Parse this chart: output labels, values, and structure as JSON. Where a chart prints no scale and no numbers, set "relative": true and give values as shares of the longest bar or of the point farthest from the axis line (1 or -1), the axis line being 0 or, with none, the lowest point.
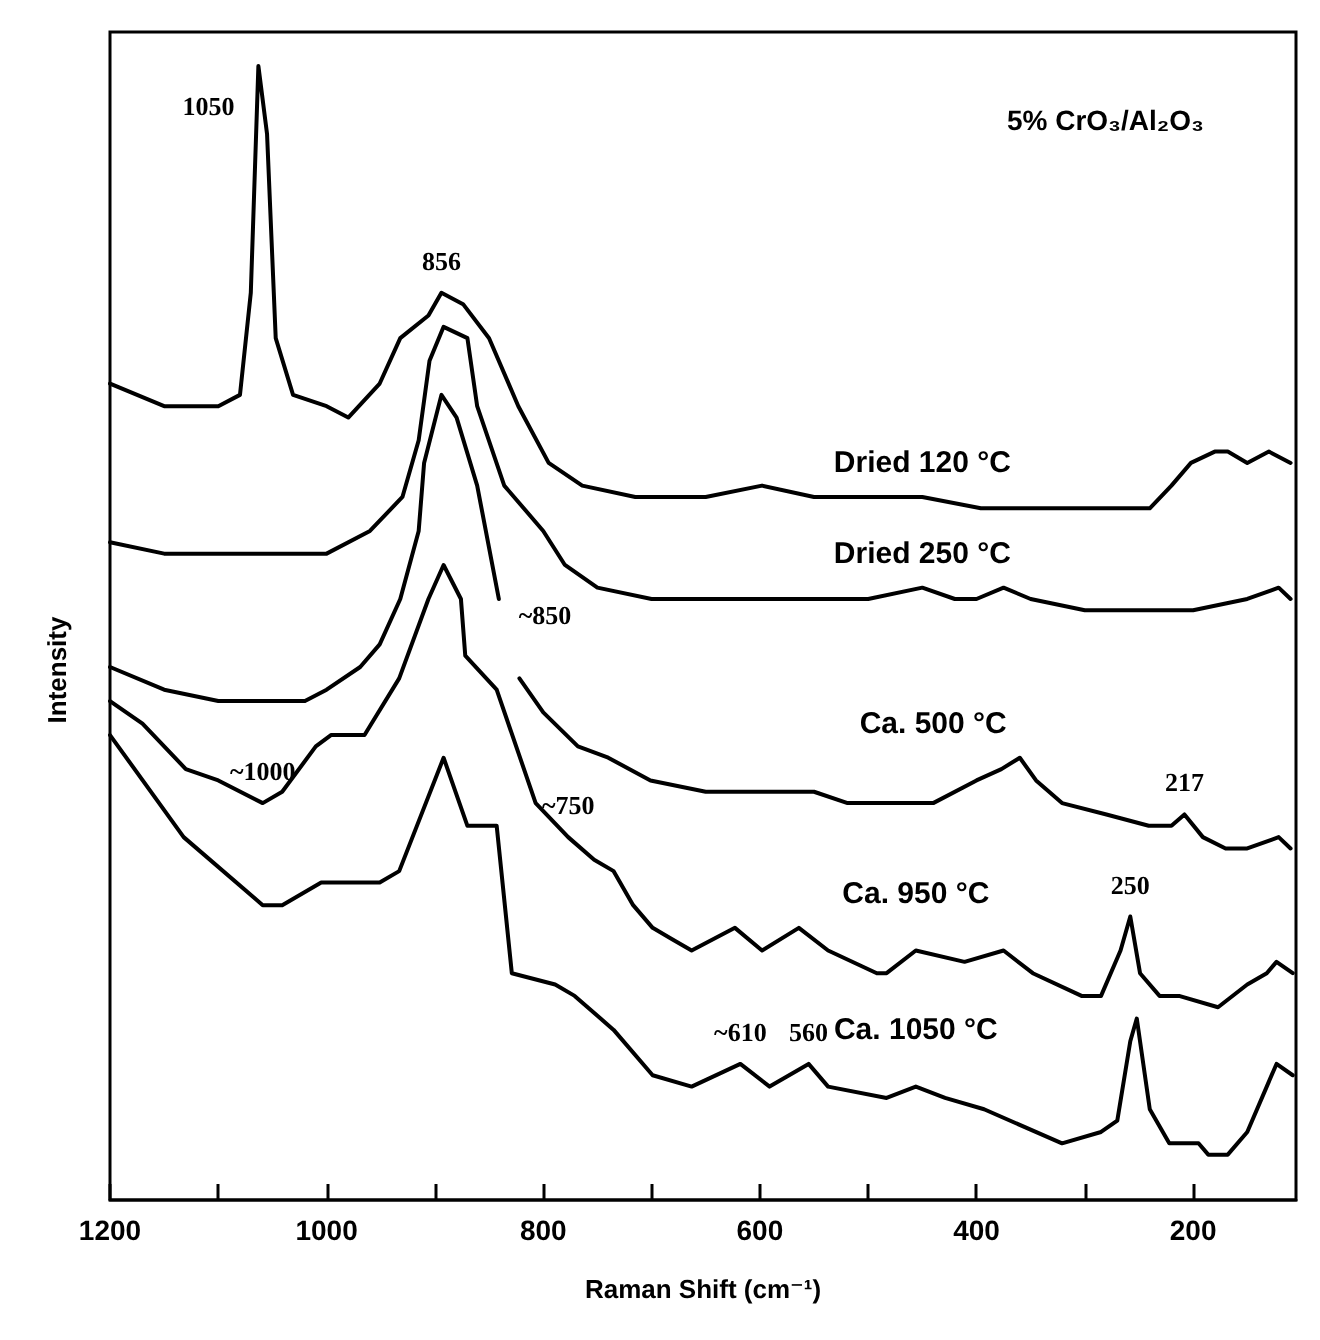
{
  "chart_data": {
    "type": "line",
    "title": "5% CrO₃/Al₂O₃",
    "xlabel": "Raman Shift (cm⁻¹)",
    "ylabel": "Intensity",
    "relative": true,
    "legend": false,
    "grid": false,
    "marker": "none",
    "line_style": "solid",
    "xlim": [
      1200,
      105
    ],
    "xticks": [
      1200,
      {
        "value": 1100,
        "label": null
      },
      1000,
      {
        "value": 900,
        "label": null
      },
      800,
      {
        "value": 700,
        "label": null
      },
      600,
      {
        "value": 500,
        "label": null
      },
      400,
      {
        "value": 300,
        "label": null
      },
      200
    ],
    "series": [
      {
        "name": "Dried 120 °C",
        "color": "#000000",
        "x": [
          1200,
          1150,
          1100,
          1080,
          1070,
          1063,
          1055,
          1047,
          1031,
          1000,
          980,
          951,
          932,
          906,
          894,
          874,
          850,
          823,
          795,
          764,
          715,
          650,
          598,
          550,
          497,
          450,
          396,
          350,
          299,
          260,
          240,
          220,
          202,
          180,
          168,
          150,
          130,
          110
        ],
        "values": [
          0.72,
          0.7,
          0.7,
          0.71,
          0.8,
          1.0,
          0.94,
          0.76,
          0.71,
          0.7,
          0.69,
          0.72,
          0.76,
          0.78,
          0.8,
          0.79,
          0.76,
          0.7,
          0.65,
          0.63,
          0.62,
          0.62,
          0.63,
          0.62,
          0.62,
          0.62,
          0.61,
          0.61,
          0.61,
          0.61,
          0.61,
          0.63,
          0.65,
          0.66,
          0.66,
          0.65,
          0.66,
          0.65
        ]
      },
      {
        "name": "Dried 250 °C",
        "color": "#000000",
        "x": [
          1200,
          1150,
          1100,
          1050,
          1000,
          960,
          930,
          915,
          905,
          892,
          870,
          861,
          836,
          800,
          780,
          750,
          700,
          650,
          600,
          550,
          500,
          450,
          420,
          400,
          375,
          350,
          300,
          250,
          200,
          150,
          121,
          110
        ],
        "values": [
          0.58,
          0.57,
          0.57,
          0.57,
          0.57,
          0.59,
          0.62,
          0.67,
          0.74,
          0.77,
          0.76,
          0.7,
          0.63,
          0.59,
          0.56,
          0.54,
          0.53,
          0.53,
          0.53,
          0.53,
          0.53,
          0.54,
          0.53,
          0.53,
          0.54,
          0.53,
          0.52,
          0.52,
          0.52,
          0.53,
          0.54,
          0.53
        ]
      },
      {
        "name": "Ca. 500 °C",
        "color": "#000000",
        "x": [
          1200,
          1150,
          1100,
          1059,
          1020,
          1000,
          969,
          951,
          932,
          915,
          910,
          894,
          880,
          861,
          841,
          832,
          822,
          800,
          768,
          740,
          701,
          650,
          598,
          550,
          519,
          479,
          440,
          400,
          377,
          360,
          345,
          321,
          280,
          241,
          220,
          208,
          191,
          170,
          150,
          121,
          110
        ],
        "values": [
          0.47,
          0.45,
          0.44,
          0.44,
          0.44,
          0.45,
          0.47,
          0.49,
          0.53,
          0.59,
          0.65,
          0.71,
          0.69,
          0.63,
          0.53,
          null,
          0.46,
          0.43,
          0.4,
          0.39,
          0.37,
          0.36,
          0.36,
          0.36,
          0.35,
          0.35,
          0.35,
          0.37,
          0.38,
          0.39,
          0.37,
          0.35,
          0.34,
          0.33,
          0.33,
          0.34,
          0.32,
          0.31,
          0.31,
          0.32,
          0.31
        ]
      },
      {
        "name": "Ca. 950 °C",
        "color": "#000000",
        "x": [
          1200,
          1170,
          1130,
          1100,
          1059,
          1041,
          1010,
          996,
          965,
          933,
          906,
          892,
          876,
          872,
          843,
          807,
          777,
          753,
          735,
          717,
          699,
          681,
          663,
          623,
          598,
          564,
          537,
          492,
          483,
          456,
          411,
          375,
          348,
          303,
          285,
          267,
          258,
          249,
          231,
          213,
          177,
          150,
          132,
          123,
          108
        ],
        "values": [
          0.44,
          0.42,
          0.38,
          0.37,
          0.35,
          0.36,
          0.4,
          0.41,
          0.41,
          0.46,
          0.53,
          0.56,
          0.53,
          0.48,
          0.45,
          0.35,
          0.32,
          0.3,
          0.29,
          0.26,
          0.24,
          0.23,
          0.22,
          0.24,
          0.22,
          0.24,
          0.22,
          0.2,
          0.2,
          0.22,
          0.21,
          0.22,
          0.2,
          0.18,
          0.18,
          0.22,
          0.25,
          0.2,
          0.18,
          0.18,
          0.17,
          0.19,
          0.2,
          0.21,
          0.2
        ]
      },
      {
        "name": "Ca. 1050 °C",
        "color": "#000000",
        "x": [
          1200,
          1132,
          1059,
          1041,
          1005,
          951,
          933,
          892,
          870,
          843,
          829,
          789,
          771,
          735,
          699,
          663,
          618,
          591,
          555,
          537,
          483,
          456,
          429,
          393,
          321,
          285,
          270,
          258,
          252,
          240,
          222,
          195,
          186,
          168,
          150,
          132,
          123,
          108
        ],
        "values": [
          0.41,
          0.32,
          0.26,
          0.26,
          0.28,
          0.28,
          0.29,
          0.39,
          0.33,
          0.33,
          0.2,
          0.19,
          0.18,
          0.15,
          0.11,
          0.1,
          0.12,
          0.1,
          0.12,
          0.1,
          0.09,
          0.1,
          0.09,
          0.08,
          0.05,
          0.06,
          0.07,
          0.14,
          0.16,
          0.08,
          0.05,
          0.05,
          0.04,
          0.04,
          0.06,
          0.1,
          0.12,
          0.11
        ]
      }
    ],
    "annotations": [
      {
        "text": "1050",
        "x": 1063,
        "y": 1.0
      },
      {
        "text": "856",
        "x": 894,
        "y": 0.8
      },
      {
        "text": "~850",
        "x": 841,
        "y": 0.53
      },
      {
        "text": "~1000",
        "x": 1059,
        "y": 0.35
      },
      {
        "text": "~750",
        "x": 777,
        "y": 0.32
      },
      {
        "text": "217",
        "x": 208,
        "y": 0.34
      },
      {
        "text": "250",
        "x": 258,
        "y": 0.25
      },
      {
        "text": "~610",
        "x": 618,
        "y": 0.12
      },
      {
        "text": "560",
        "x": 555,
        "y": 0.12
      }
    ]
  }
}
